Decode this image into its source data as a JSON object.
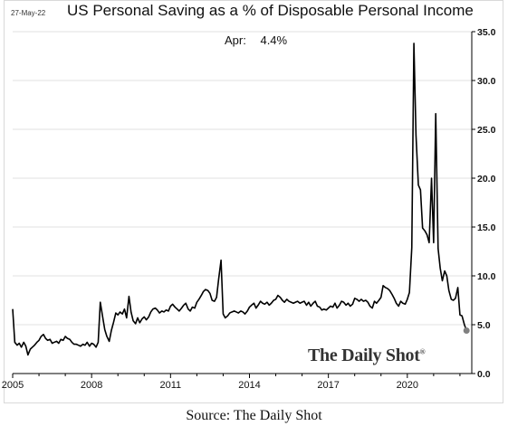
{
  "header": {
    "date": "27-May-22",
    "title": "US Personal Saving as a % of Disposable Personal Income",
    "latest_label": "Apr:",
    "latest_value": "4.4%"
  },
  "brand": {
    "name": "The Daily Shot",
    "mark": "®"
  },
  "footer": {
    "source": "Source: The Daily Shot"
  },
  "colors": {
    "line": "#000000",
    "marker": "#808080",
    "gridline": "#e0e0e0"
  },
  "chart_data": {
    "type": "line",
    "title": "US Personal Saving as a % of Disposable Personal Income",
    "xlabel": "",
    "ylabel": "",
    "x_ticks": [
      "2005",
      "2008",
      "2011",
      "2014",
      "2017",
      "2020"
    ],
    "y_ticks": [
      "0.0",
      "5.0",
      "10.0",
      "15.0",
      "20.0",
      "25.0",
      "30.0",
      "35.0"
    ],
    "xlim": [
      2005.0,
      2022.45
    ],
    "ylim": [
      0,
      35
    ],
    "y_axis_side": "right",
    "grid": "horizontal",
    "series": [
      {
        "values": [
          [
            2005.0,
            6.6
          ],
          [
            2005.08,
            3.2
          ],
          [
            2005.17,
            2.9
          ],
          [
            2005.25,
            3.1
          ],
          [
            2005.33,
            2.7
          ],
          [
            2005.42,
            3.2
          ],
          [
            2005.5,
            2.8
          ],
          [
            2005.58,
            1.9
          ],
          [
            2005.67,
            2.5
          ],
          [
            2005.75,
            2.7
          ],
          [
            2005.83,
            2.9
          ],
          [
            2005.92,
            3.2
          ],
          [
            2006.0,
            3.4
          ],
          [
            2006.08,
            3.8
          ],
          [
            2006.17,
            4.0
          ],
          [
            2006.25,
            3.6
          ],
          [
            2006.33,
            3.4
          ],
          [
            2006.42,
            3.5
          ],
          [
            2006.5,
            3.1
          ],
          [
            2006.58,
            3.2
          ],
          [
            2006.67,
            3.3
          ],
          [
            2006.75,
            3.1
          ],
          [
            2006.83,
            3.5
          ],
          [
            2006.92,
            3.4
          ],
          [
            2007.0,
            3.8
          ],
          [
            2007.08,
            3.6
          ],
          [
            2007.17,
            3.5
          ],
          [
            2007.25,
            3.2
          ],
          [
            2007.33,
            3.0
          ],
          [
            2007.42,
            3.0
          ],
          [
            2007.5,
            2.9
          ],
          [
            2007.58,
            2.8
          ],
          [
            2007.67,
            3.0
          ],
          [
            2007.75,
            2.9
          ],
          [
            2007.83,
            3.2
          ],
          [
            2007.92,
            2.8
          ],
          [
            2008.0,
            3.1
          ],
          [
            2008.08,
            3.0
          ],
          [
            2008.17,
            2.7
          ],
          [
            2008.25,
            3.2
          ],
          [
            2008.33,
            7.3
          ],
          [
            2008.42,
            5.8
          ],
          [
            2008.5,
            4.5
          ],
          [
            2008.58,
            3.8
          ],
          [
            2008.67,
            3.3
          ],
          [
            2008.75,
            4.4
          ],
          [
            2008.83,
            5.2
          ],
          [
            2008.92,
            6.2
          ],
          [
            2009.0,
            6.0
          ],
          [
            2009.08,
            6.3
          ],
          [
            2009.17,
            6.1
          ],
          [
            2009.25,
            6.6
          ],
          [
            2009.33,
            5.7
          ],
          [
            2009.42,
            7.9
          ],
          [
            2009.5,
            6.3
          ],
          [
            2009.58,
            5.4
          ],
          [
            2009.67,
            5.1
          ],
          [
            2009.75,
            5.7
          ],
          [
            2009.83,
            5.2
          ],
          [
            2009.92,
            5.6
          ],
          [
            2010.0,
            5.8
          ],
          [
            2010.08,
            5.5
          ],
          [
            2010.17,
            5.8
          ],
          [
            2010.25,
            6.3
          ],
          [
            2010.33,
            6.6
          ],
          [
            2010.42,
            6.7
          ],
          [
            2010.5,
            6.5
          ],
          [
            2010.58,
            6.2
          ],
          [
            2010.67,
            6.4
          ],
          [
            2010.75,
            6.3
          ],
          [
            2010.83,
            6.5
          ],
          [
            2010.92,
            6.4
          ],
          [
            2011.0,
            6.9
          ],
          [
            2011.08,
            7.1
          ],
          [
            2011.17,
            6.8
          ],
          [
            2011.25,
            6.6
          ],
          [
            2011.33,
            6.4
          ],
          [
            2011.42,
            6.7
          ],
          [
            2011.5,
            7.0
          ],
          [
            2011.58,
            7.2
          ],
          [
            2011.67,
            6.6
          ],
          [
            2011.75,
            6.4
          ],
          [
            2011.83,
            6.8
          ],
          [
            2011.92,
            6.7
          ],
          [
            2012.0,
            7.3
          ],
          [
            2012.08,
            7.6
          ],
          [
            2012.17,
            8.0
          ],
          [
            2012.25,
            8.4
          ],
          [
            2012.33,
            8.6
          ],
          [
            2012.42,
            8.5
          ],
          [
            2012.5,
            8.2
          ],
          [
            2012.58,
            7.5
          ],
          [
            2012.67,
            7.4
          ],
          [
            2012.75,
            7.8
          ],
          [
            2012.83,
            9.7
          ],
          [
            2012.92,
            11.6
          ],
          [
            2013.0,
            6.1
          ],
          [
            2013.08,
            5.7
          ],
          [
            2013.17,
            5.9
          ],
          [
            2013.25,
            6.2
          ],
          [
            2013.33,
            6.3
          ],
          [
            2013.42,
            6.4
          ],
          [
            2013.5,
            6.3
          ],
          [
            2013.58,
            6.2
          ],
          [
            2013.67,
            6.4
          ],
          [
            2013.75,
            6.3
          ],
          [
            2013.83,
            6.1
          ],
          [
            2013.92,
            6.4
          ],
          [
            2014.0,
            6.8
          ],
          [
            2014.08,
            7.0
          ],
          [
            2014.17,
            7.2
          ],
          [
            2014.25,
            6.7
          ],
          [
            2014.33,
            7.0
          ],
          [
            2014.42,
            7.4
          ],
          [
            2014.5,
            7.2
          ],
          [
            2014.58,
            7.1
          ],
          [
            2014.67,
            7.3
          ],
          [
            2014.75,
            7.0
          ],
          [
            2014.83,
            7.2
          ],
          [
            2014.92,
            7.5
          ],
          [
            2015.0,
            7.6
          ],
          [
            2015.08,
            8.0
          ],
          [
            2015.17,
            7.8
          ],
          [
            2015.25,
            7.5
          ],
          [
            2015.33,
            7.3
          ],
          [
            2015.42,
            7.6
          ],
          [
            2015.5,
            7.4
          ],
          [
            2015.58,
            7.3
          ],
          [
            2015.67,
            7.2
          ],
          [
            2015.75,
            7.3
          ],
          [
            2015.83,
            7.4
          ],
          [
            2015.92,
            7.2
          ],
          [
            2016.0,
            7.3
          ],
          [
            2016.08,
            7.4
          ],
          [
            2016.17,
            7.0
          ],
          [
            2016.25,
            7.3
          ],
          [
            2016.33,
            6.9
          ],
          [
            2016.42,
            7.2
          ],
          [
            2016.5,
            7.4
          ],
          [
            2016.58,
            6.9
          ],
          [
            2016.67,
            6.8
          ],
          [
            2016.75,
            6.5
          ],
          [
            2016.83,
            6.6
          ],
          [
            2016.92,
            6.5
          ],
          [
            2017.0,
            6.7
          ],
          [
            2017.08,
            6.9
          ],
          [
            2017.17,
            6.8
          ],
          [
            2017.25,
            7.2
          ],
          [
            2017.33,
            6.7
          ],
          [
            2017.42,
            7.0
          ],
          [
            2017.5,
            7.4
          ],
          [
            2017.58,
            7.3
          ],
          [
            2017.67,
            7.0
          ],
          [
            2017.75,
            7.2
          ],
          [
            2017.83,
            6.9
          ],
          [
            2017.92,
            7.1
          ],
          [
            2018.0,
            7.7
          ],
          [
            2018.08,
            7.6
          ],
          [
            2018.17,
            7.4
          ],
          [
            2018.25,
            7.6
          ],
          [
            2018.33,
            7.4
          ],
          [
            2018.42,
            7.5
          ],
          [
            2018.5,
            7.3
          ],
          [
            2018.58,
            6.9
          ],
          [
            2018.67,
            6.7
          ],
          [
            2018.75,
            7.4
          ],
          [
            2018.83,
            7.2
          ],
          [
            2018.92,
            7.5
          ],
          [
            2019.0,
            7.8
          ],
          [
            2019.08,
            9.0
          ],
          [
            2019.17,
            8.8
          ],
          [
            2019.25,
            8.7
          ],
          [
            2019.33,
            8.5
          ],
          [
            2019.42,
            8.1
          ],
          [
            2019.5,
            7.7
          ],
          [
            2019.58,
            7.2
          ],
          [
            2019.67,
            6.9
          ],
          [
            2019.75,
            7.4
          ],
          [
            2019.83,
            7.2
          ],
          [
            2019.92,
            7.1
          ],
          [
            2020.0,
            7.6
          ],
          [
            2020.08,
            8.3
          ],
          [
            2020.17,
            12.9
          ],
          [
            2020.25,
            33.8
          ],
          [
            2020.33,
            24.4
          ],
          [
            2020.42,
            19.3
          ],
          [
            2020.5,
            18.8
          ],
          [
            2020.58,
            14.9
          ],
          [
            2020.67,
            14.6
          ],
          [
            2020.75,
            14.2
          ],
          [
            2020.83,
            13.4
          ],
          [
            2020.92,
            20.0
          ],
          [
            2021.0,
            13.4
          ],
          [
            2021.08,
            26.6
          ],
          [
            2021.17,
            12.8
          ],
          [
            2021.25,
            10.8
          ],
          [
            2021.33,
            9.5
          ],
          [
            2021.42,
            10.5
          ],
          [
            2021.5,
            10.0
          ],
          [
            2021.58,
            8.5
          ],
          [
            2021.67,
            7.6
          ],
          [
            2021.75,
            7.5
          ],
          [
            2021.83,
            7.7
          ],
          [
            2021.92,
            8.8
          ],
          [
            2022.0,
            6.0
          ],
          [
            2022.08,
            5.9
          ],
          [
            2022.17,
            5.0
          ],
          [
            2022.25,
            4.4
          ]
        ]
      }
    ],
    "latest_point": {
      "x": 2022.25,
      "y": 4.4
    }
  }
}
